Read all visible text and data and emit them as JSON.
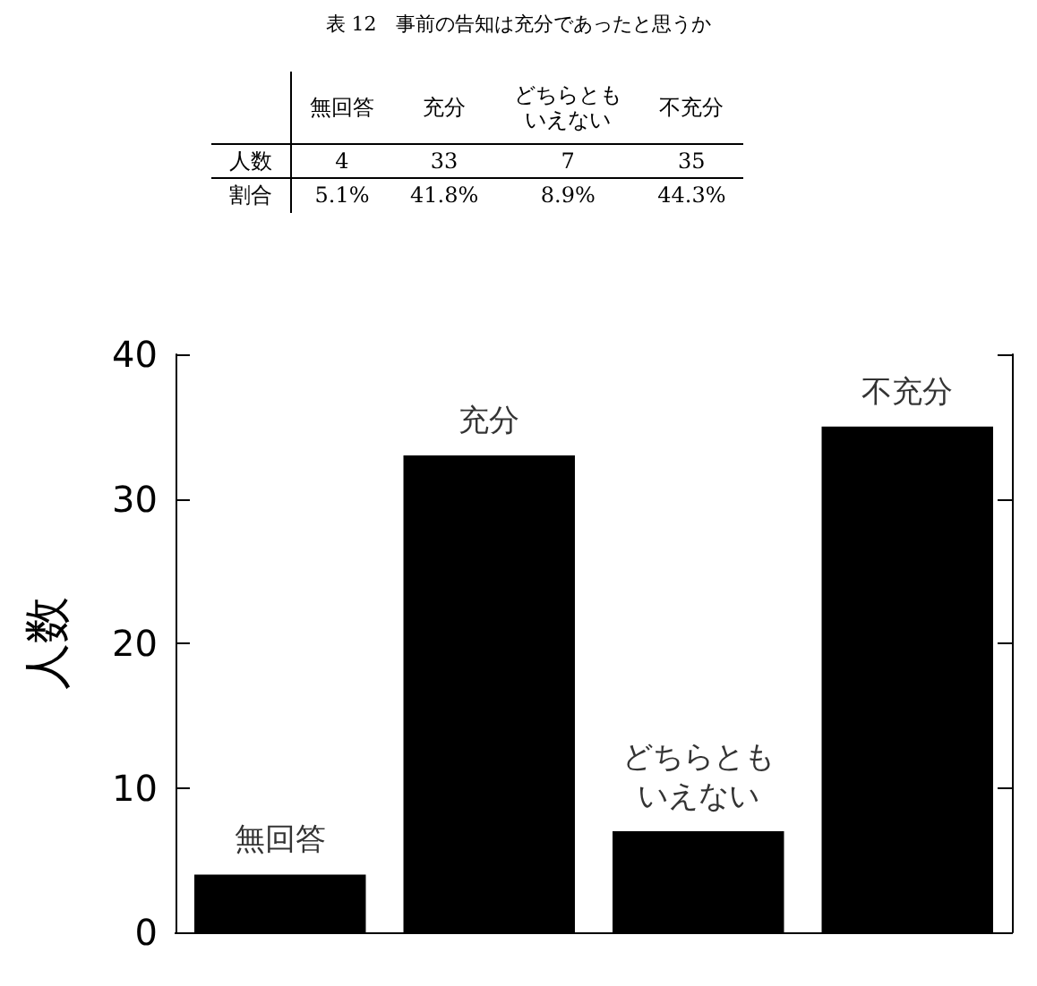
{
  "chart_data": {
    "type": "bar",
    "title": "表 12　事前の告知は充分であったと思うか",
    "categories": [
      null,
      null,
      null,
      null
    ],
    "values": [
      4,
      33,
      7,
      35
    ],
    "color": "#000000",
    "ylabel": "人数",
    "ylim": [
      0,
      40
    ],
    "yticks": [
      0,
      10,
      20,
      30,
      40
    ],
    "annotations": [
      "無回答",
      "充分",
      "どちらともいえない",
      "不充分",
      "人数",
      "4",
      "33",
      "7",
      "35",
      "割合",
      "5.1%",
      "41.8%",
      "8.9%",
      "44.3%",
      "無回答",
      "充分",
      "どちらともいえない",
      "不充分"
    ]
  }
}
